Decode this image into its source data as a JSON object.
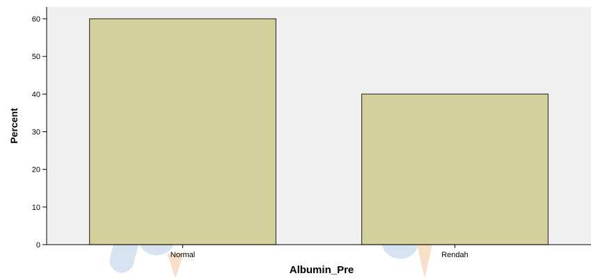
{
  "chart_data": {
    "type": "bar",
    "categories": [
      "Normal",
      "Rendah"
    ],
    "values": [
      60,
      40
    ],
    "title": "",
    "xlabel": "Albumin_Pre",
    "ylabel": "Percent",
    "ylim": [
      0,
      60
    ],
    "yticks": [
      "0",
      "10",
      "20",
      "30",
      "40",
      "50",
      "60"
    ],
    "grid": false,
    "legend": "none"
  },
  "colors": {
    "plot_background": "#f0f0f0",
    "bar_fill": "#d4d09c",
    "bar_stroke": "#3c3c3c",
    "axis": "#000000"
  }
}
